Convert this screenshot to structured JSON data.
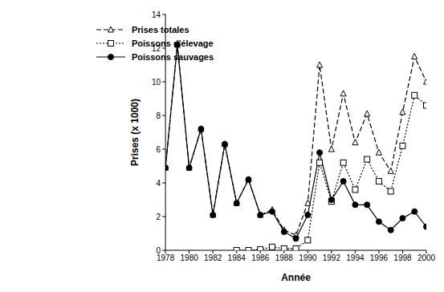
{
  "chart_data": {
    "type": "line",
    "x_label": "Année",
    "y_label": "Prises (x 1000)",
    "x": [
      1978,
      1979,
      1980,
      1981,
      1982,
      1983,
      1984,
      1985,
      1986,
      1987,
      1988,
      1989,
      1990,
      1991,
      1992,
      1993,
      1994,
      1995,
      1996,
      1997,
      1998,
      1999,
      2000
    ],
    "series": [
      {
        "name": "Prises totales",
        "color": "#000000",
        "marker": "triangle",
        "line_style": "dashed",
        "values": [
          4.9,
          12.2,
          4.9,
          7.2,
          2.1,
          6.3,
          2.8,
          4.2,
          2.1,
          2.4,
          1.2,
          0.9,
          2.8,
          11.0,
          6.0,
          9.3,
          6.4,
          8.1,
          5.8,
          4.7,
          8.2,
          11.5,
          10.0
        ]
      },
      {
        "name": "Poissons d'élevage",
        "color": "#000000",
        "marker": "square",
        "line_style": "dotted",
        "values": [
          null,
          null,
          null,
          null,
          null,
          null,
          0,
          0,
          0.05,
          0.2,
          0.1,
          0.1,
          0.6,
          5.2,
          2.9,
          5.2,
          3.6,
          5.4,
          4.1,
          3.5,
          6.2,
          9.2,
          8.6
        ]
      },
      {
        "name": "Poissons sauvages",
        "color": "#000000",
        "marker": "circle",
        "line_style": "solid",
        "values": [
          4.9,
          12.2,
          4.9,
          7.2,
          2.1,
          6.3,
          2.8,
          4.2,
          2.1,
          2.3,
          1.1,
          0.7,
          2.1,
          5.8,
          3.0,
          4.1,
          2.7,
          2.7,
          1.7,
          1.2,
          1.9,
          2.3,
          1.4
        ]
      }
    ],
    "xlim": [
      1978,
      2000
    ],
    "xticks": [
      1978,
      1980,
      1982,
      1984,
      1986,
      1988,
      1990,
      1992,
      1994,
      1996,
      1998,
      2000
    ],
    "ylim": [
      0,
      14
    ],
    "yticks": [
      0,
      2,
      4,
      6,
      8,
      10,
      12,
      14
    ],
    "grid": false,
    "legend": "upper left"
  }
}
